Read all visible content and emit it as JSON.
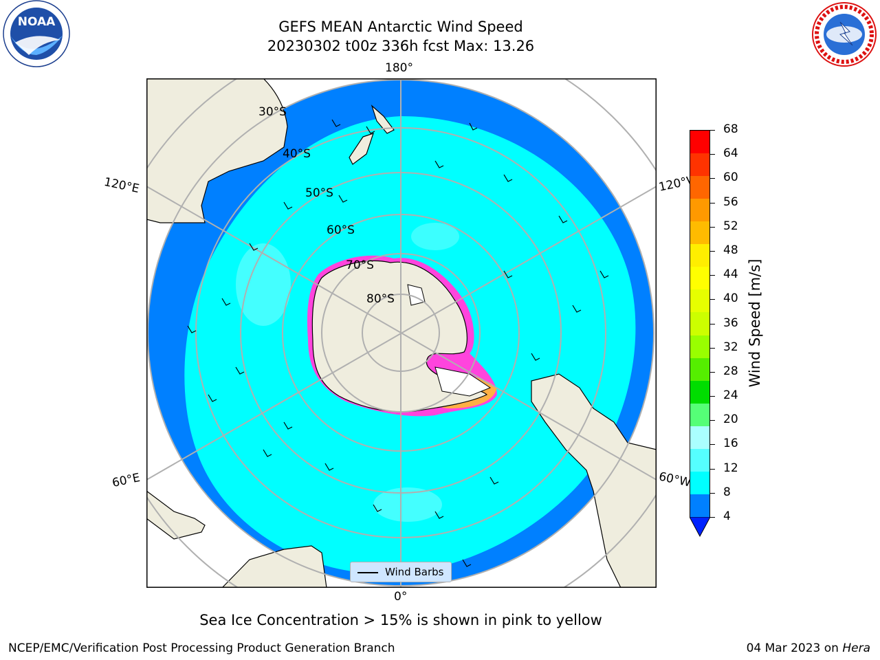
{
  "title_line1": "GEFS MEAN Antarctic Wind Speed",
  "title_line2": "20230302 t00z 336h fcst   Max: 13.26",
  "caption": "Sea Ice Concentration > 15% is shown in pink to yellow",
  "footer_left": "NCEP/EMC/Verification Post Processing Product Generation Branch",
  "footer_date": "04 Mar 2023 on ",
  "footer_machine": "Hera",
  "logos": {
    "left": "NOAA",
    "right": "NATIONAL WEATHER SERVICE"
  },
  "map": {
    "longitude_labels": [
      "180°",
      "120°E",
      "120°W",
      "60°E",
      "60°W",
      "0°"
    ],
    "latitude_labels": [
      "30°S",
      "40°S",
      "50°S",
      "60°S",
      "70°S",
      "80°S"
    ],
    "legend_label": "Wind Barbs",
    "colors": {
      "land": "#efedde",
      "ocean_low": "#0080ff",
      "ocean_mid": "#00ffff",
      "ocean_high": "#55ffff",
      "ice_pink": "#ff44dd",
      "ice_yellow": "#ffbb33"
    }
  },
  "colorbar": {
    "label": "Wind Speed [m/s]",
    "ticks": [
      "68",
      "64",
      "60",
      "56",
      "52",
      "48",
      "44",
      "40",
      "36",
      "32",
      "28",
      "24",
      "20",
      "16",
      "12",
      "8",
      "4"
    ],
    "colors_top_to_bottom": [
      "#ff0000",
      "#ff3300",
      "#ff6600",
      "#ff9900",
      "#ffbb00",
      "#ffee00",
      "#ffff00",
      "#e6ff00",
      "#ccff00",
      "#99ff00",
      "#55ee00",
      "#00dd00",
      "#55ff77",
      "#aaffff",
      "#55ffff",
      "#00ffff",
      "#0080ff"
    ],
    "extend_color": "#0022ff"
  }
}
